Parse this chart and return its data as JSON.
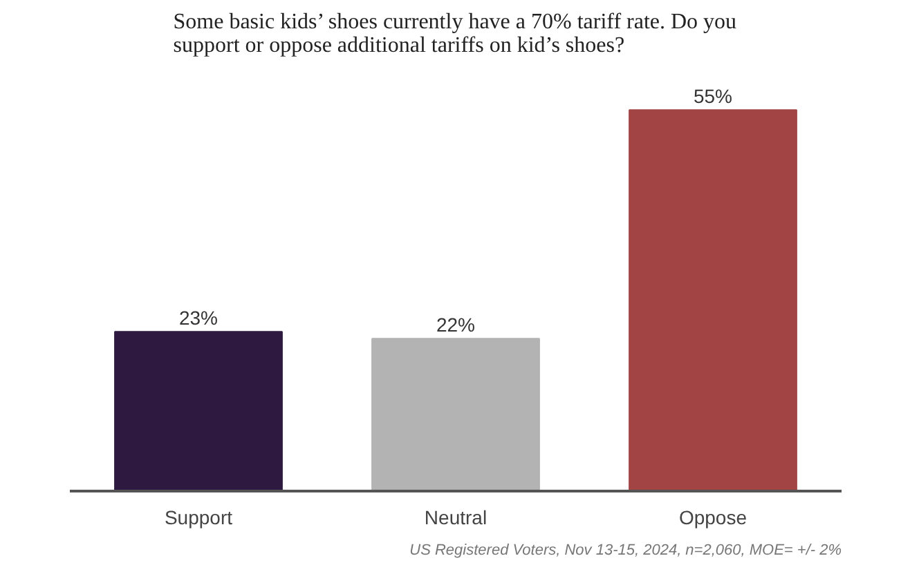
{
  "chart_data": {
    "type": "bar",
    "title": "Some basic kids’ shoes currently have a 70% tariff rate. Do you\nsupport or oppose additional tariffs on kid’s shoes?",
    "categories": [
      "Support",
      "Neutral",
      "Oppose"
    ],
    "values": [
      23,
      22,
      55
    ],
    "value_labels": [
      "23%",
      "22%",
      "55%"
    ],
    "colors": [
      "#2e1a40",
      "#b3b3b3",
      "#a34444"
    ],
    "annotations": [
      "US Registered Voters, Nov 13-15, 2024, n=2,060, MOE= +/- 2%"
    ]
  }
}
